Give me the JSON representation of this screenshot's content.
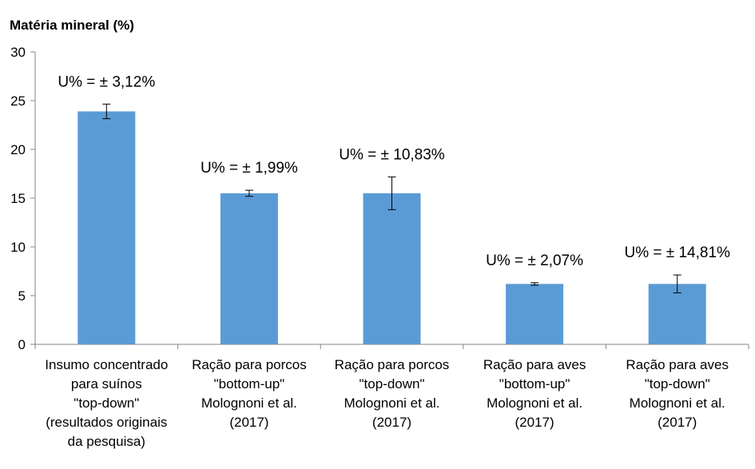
{
  "chart_data": {
    "type": "bar",
    "title": "",
    "ylabel": "Matéria mineral (%)",
    "xlabel": "",
    "ylim": [
      0,
      30
    ],
    "yticks": [
      0,
      5,
      10,
      15,
      20,
      25,
      30
    ],
    "grid": false,
    "bar_color": "#5b9bd5",
    "categories": [
      [
        "Insumo concentrado",
        "para suínos",
        "\"top-down\"",
        "(resultados originais",
        "da pesquisa)"
      ],
      [
        "Ração para porcos",
        "\"bottom-up\"",
        "Molognoni et al.",
        "(2017)"
      ],
      [
        "Ração para porcos",
        "\"top-down\"",
        "Molognoni et al.",
        "(2017)"
      ],
      [
        "Ração para aves",
        "\"bottom-up\"",
        "Molognoni et al.",
        "(2017)"
      ],
      [
        "Ração para aves",
        "\"top-down\"",
        "Molognoni et al.",
        "(2017)"
      ]
    ],
    "values": [
      23.9,
      15.5,
      15.5,
      6.2,
      6.2
    ],
    "error_low": [
      23.15,
      15.19,
      13.82,
      6.07,
      5.28
    ],
    "error_high": [
      24.65,
      15.81,
      17.18,
      6.33,
      7.12
    ],
    "annotations": [
      "U% = ± 3,12%",
      "U% = ± 1,99%",
      "U% = ± 10,83%",
      "U% = ± 2,07%",
      "U% = ± 14,81%"
    ]
  }
}
